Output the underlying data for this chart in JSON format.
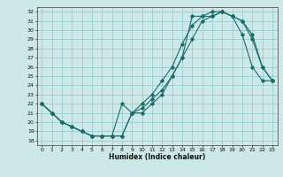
{
  "xlabel": "Humidex (Indice chaleur)",
  "bg_color": "#cce8e8",
  "grid_color": "#99cccc",
  "line_color": "#1a6b6b",
  "xlim": [
    -0.5,
    23.5
  ],
  "ylim": [
    17.5,
    32.5
  ],
  "xticks": [
    0,
    1,
    2,
    3,
    4,
    5,
    6,
    7,
    8,
    9,
    10,
    11,
    12,
    13,
    14,
    15,
    16,
    17,
    18,
    19,
    20,
    21,
    22,
    23
  ],
  "yticks": [
    18,
    19,
    20,
    21,
    22,
    23,
    24,
    25,
    26,
    27,
    28,
    29,
    30,
    31,
    32
  ],
  "line1_x": [
    0,
    1,
    2,
    3,
    4,
    5,
    6,
    7,
    8,
    9,
    10,
    11,
    12,
    13,
    14,
    15,
    16,
    17,
    18,
    19,
    20,
    21,
    22,
    23
  ],
  "line1_y": [
    22,
    21,
    20,
    19.5,
    19,
    18.5,
    18.5,
    18.5,
    18.5,
    21,
    21,
    22,
    23,
    25,
    27,
    29,
    31,
    31.5,
    32,
    31.5,
    29.5,
    26,
    24.5,
    24.5
  ],
  "line2_x": [
    0,
    1,
    2,
    3,
    4,
    5,
    6,
    7,
    8,
    9,
    10,
    11,
    12,
    13,
    14,
    15,
    16,
    17,
    18,
    19,
    20,
    21,
    22,
    23
  ],
  "line2_y": [
    22,
    21,
    20,
    19.5,
    19,
    18.5,
    18.5,
    18.5,
    22,
    21,
    22,
    23,
    24.5,
    26,
    28.5,
    30.5,
    31.5,
    31.5,
    32,
    31.5,
    31,
    29.5,
    26,
    24.5
  ],
  "line3_x": [
    0,
    1,
    2,
    3,
    4,
    5,
    6,
    7,
    8,
    9,
    10,
    11,
    12,
    13,
    14,
    15,
    16,
    17,
    18,
    19,
    20,
    21,
    22,
    23
  ],
  "line3_y": [
    22,
    21,
    20,
    19.5,
    19,
    18.5,
    18.5,
    18.5,
    18.5,
    21,
    21.5,
    22.5,
    23.5,
    25,
    27,
    31.5,
    31.5,
    32,
    32,
    31.5,
    31,
    29,
    26,
    24.5
  ]
}
